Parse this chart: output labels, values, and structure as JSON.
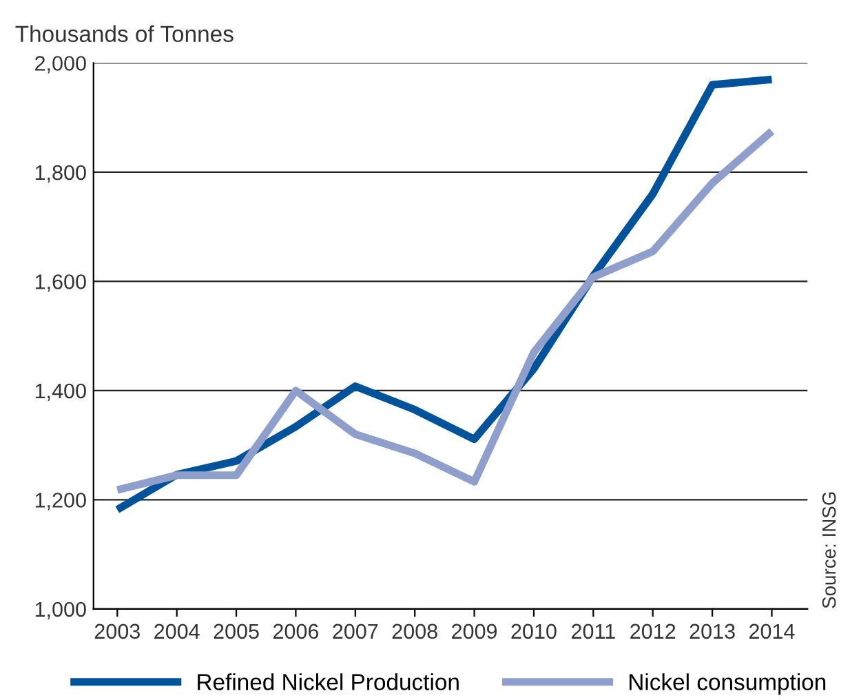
{
  "chart_data": {
    "type": "line",
    "ylabel": "Thousands of Tonnes",
    "categories": [
      "2003",
      "2004",
      "2005",
      "2006",
      "2007",
      "2008",
      "2009",
      "2010",
      "2011",
      "2012",
      "2013",
      "2014"
    ],
    "series": [
      {
        "name": "Refined Nickel Production",
        "color": "#00529b",
        "values": [
          1182,
          1246,
          1271,
          1334,
          1408,
          1365,
          1311,
          1440,
          1610,
          1760,
          1960,
          1970
        ]
      },
      {
        "name": "Nickel consumption",
        "color": "#8e9fcc",
        "values": [
          1218,
          1245,
          1245,
          1400,
          1320,
          1285,
          1233,
          1470,
          1608,
          1655,
          1780,
          1875
        ]
      }
    ],
    "ylim": [
      1000,
      2000
    ],
    "yticks": [
      {
        "value": 1000,
        "label": "1,000"
      },
      {
        "value": 1200,
        "label": "1,200"
      },
      {
        "value": 1400,
        "label": "1,400"
      },
      {
        "value": 1600,
        "label": "1,600"
      },
      {
        "value": 1800,
        "label": "1,800"
      },
      {
        "value": 2000,
        "label": "2,000"
      }
    ],
    "grid": "y",
    "legend": "bottom",
    "marker": "none",
    "line_style": "solid",
    "annotations": [
      "Source: INSG"
    ]
  }
}
